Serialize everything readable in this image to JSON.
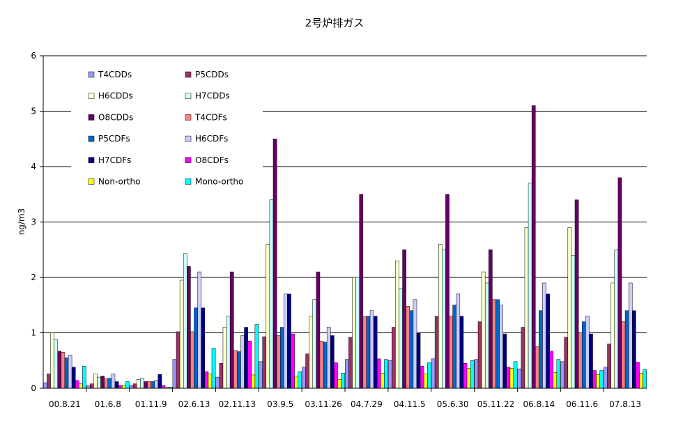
{
  "chart_data": {
    "type": "bar",
    "title": "2号炉排ガス",
    "ylabel": "ng/m3",
    "xlabel": "",
    "ylim": [
      0,
      6
    ],
    "yticks": [
      "0",
      "1",
      "2",
      "3",
      "4",
      "5",
      "6"
    ],
    "grid": true,
    "legend_position": "top-left",
    "categories": [
      "00.8.21",
      "01.6.8",
      "01.11.9",
      "02.6.13",
      "02.11.13",
      "03.9.5",
      "03.11.26",
      "04.7.29",
      "04.11.5",
      "05.6.30",
      "05.11.22",
      "06.8.14",
      "06.11.6",
      "07.8.13"
    ],
    "series": [
      {
        "name": "T4CDDs",
        "color": "#9999FF",
        "values": [
          0.1,
          0.05,
          0.05,
          0.52,
          0.2,
          0.48,
          0.38,
          0.52,
          0.5,
          0.53,
          0.52,
          0.35,
          0.48,
          0.38
        ]
      },
      {
        "name": "P5CDDs",
        "color": "#993366",
        "values": [
          0.26,
          0.08,
          0.08,
          1.02,
          0.45,
          0.93,
          0.62,
          0.92,
          1.1,
          1.3,
          1.2,
          1.1,
          0.92,
          0.8
        ]
      },
      {
        "name": "H6CDDs",
        "color": "#FFFFCC",
        "values": [
          1.0,
          0.26,
          0.16,
          1.95,
          1.1,
          2.6,
          1.3,
          2.0,
          2.3,
          2.6,
          2.1,
          2.9,
          2.9,
          1.9
        ]
      },
      {
        "name": "H7CDDs",
        "color": "#CCFFFF",
        "values": [
          0.88,
          0.2,
          0.18,
          2.43,
          1.3,
          3.4,
          1.6,
          2.0,
          1.8,
          2.5,
          1.9,
          3.7,
          2.4,
          2.5
        ]
      },
      {
        "name": "O8CDDs",
        "color": "#660066",
        "values": [
          0.67,
          0.22,
          0.12,
          2.2,
          2.1,
          4.5,
          2.1,
          3.5,
          2.5,
          3.5,
          2.5,
          5.1,
          3.4,
          3.8
        ]
      },
      {
        "name": "T4CDFs",
        "color": "#FF8080",
        "values": [
          0.65,
          0.17,
          0.12,
          1.02,
          0.68,
          0.95,
          0.85,
          1.3,
          1.48,
          1.3,
          1.6,
          0.75,
          1.0,
          1.2
        ]
      },
      {
        "name": "P5CDFs",
        "color": "#0066CC",
        "values": [
          0.55,
          0.18,
          0.12,
          1.45,
          0.66,
          1.1,
          0.83,
          1.3,
          1.4,
          1.5,
          1.6,
          1.4,
          1.2,
          1.4
        ]
      },
      {
        "name": "H6CDFs",
        "color": "#CCCCFF",
        "values": [
          0.6,
          0.26,
          0.14,
          2.1,
          0.95,
          1.7,
          1.1,
          1.4,
          1.6,
          1.7,
          1.5,
          1.9,
          1.3,
          1.9
        ]
      },
      {
        "name": "H7CDFs",
        "color": "#000080",
        "values": [
          0.38,
          0.12,
          0.25,
          1.45,
          1.1,
          1.7,
          0.95,
          1.3,
          1.0,
          1.3,
          0.98,
          1.7,
          0.98,
          1.4
        ]
      },
      {
        "name": "O8CDFs",
        "color": "#FF00FF",
        "values": [
          0.14,
          0.05,
          0.05,
          0.3,
          0.85,
          0.98,
          0.46,
          0.53,
          0.4,
          0.45,
          0.38,
          0.67,
          0.32,
          0.47
        ]
      },
      {
        "name": "Non-ortho",
        "color": "#FFFF00",
        "values": [
          0.08,
          0.05,
          0.02,
          0.26,
          0.24,
          0.22,
          0.16,
          0.27,
          0.26,
          0.36,
          0.36,
          0.28,
          0.25,
          0.27
        ]
      },
      {
        "name": "Mono-ortho",
        "color": "#00FFFF",
        "values": [
          0.4,
          0.12,
          0.02,
          0.72,
          1.15,
          0.3,
          0.27,
          0.52,
          0.46,
          0.5,
          0.48,
          0.52,
          0.32,
          0.34
        ]
      }
    ]
  }
}
